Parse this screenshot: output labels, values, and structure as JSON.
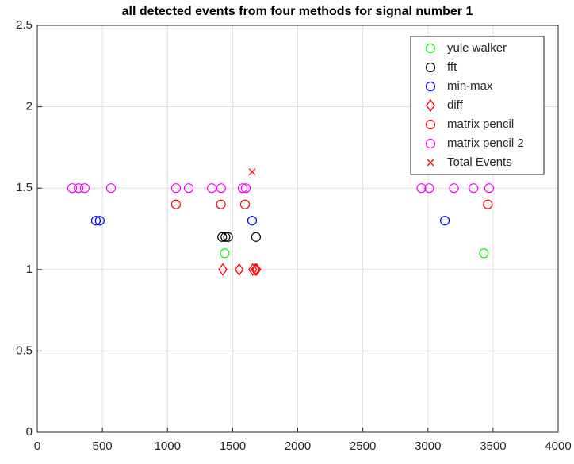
{
  "chart_data": {
    "type": "scatter",
    "title": "all detected events from four methods for signal number 1",
    "xlim": [
      0,
      4000
    ],
    "xticks": [
      0,
      500,
      1000,
      1500,
      2000,
      2500,
      3000,
      3500,
      4000
    ],
    "ylim": [
      0,
      2.5
    ],
    "yticks": [
      0,
      0.5,
      1,
      1.5,
      2,
      2.5
    ],
    "grid": true,
    "legend": "northeast",
    "series": [
      {
        "name": "yule walker",
        "color": "#00ff00",
        "marker": "o",
        "x": [
          1440,
          3430
        ],
        "values": [
          1.1,
          1.1
        ]
      },
      {
        "name": "fft",
        "color": "#000000",
        "marker": "o",
        "x": [
          1420,
          1445,
          1465,
          1680
        ],
        "values": [
          1.2,
          1.2,
          1.2,
          1.2
        ]
      },
      {
        "name": "min-max",
        "color": "#0000ff",
        "marker": "o",
        "x": [
          450,
          480,
          1650,
          3130
        ],
        "values": [
          1.3,
          1.3,
          1.3,
          1.3
        ]
      },
      {
        "name": "diff",
        "color": "#ff0000",
        "marker": "d",
        "x": [
          1425,
          1550,
          1655,
          1675,
          1685
        ],
        "values": [
          1,
          1,
          1,
          1,
          1
        ]
      },
      {
        "name": "matrix pencil",
        "color": "#ff0000",
        "marker": "o",
        "x": [
          1065,
          1410,
          1595,
          3460
        ],
        "values": [
          1.4,
          1.4,
          1.4,
          1.4
        ]
      },
      {
        "name": "matrix pencil 2",
        "color": "#ff00ff",
        "marker": "o",
        "x": [
          268,
          317,
          365,
          566,
          1065,
          1163,
          1340,
          1412,
          1577,
          1601,
          2950,
          3010,
          3200,
          3350,
          3470
        ],
        "values": [
          1.5,
          1.5,
          1.5,
          1.5,
          1.5,
          1.5,
          1.5,
          1.5,
          1.5,
          1.5,
          1.5,
          1.5,
          1.5,
          1.5,
          1.5
        ]
      },
      {
        "name": "Total Events",
        "color": "#ff0000",
        "marker": "x",
        "x": [
          1650
        ],
        "values": [
          1.6
        ]
      }
    ]
  }
}
